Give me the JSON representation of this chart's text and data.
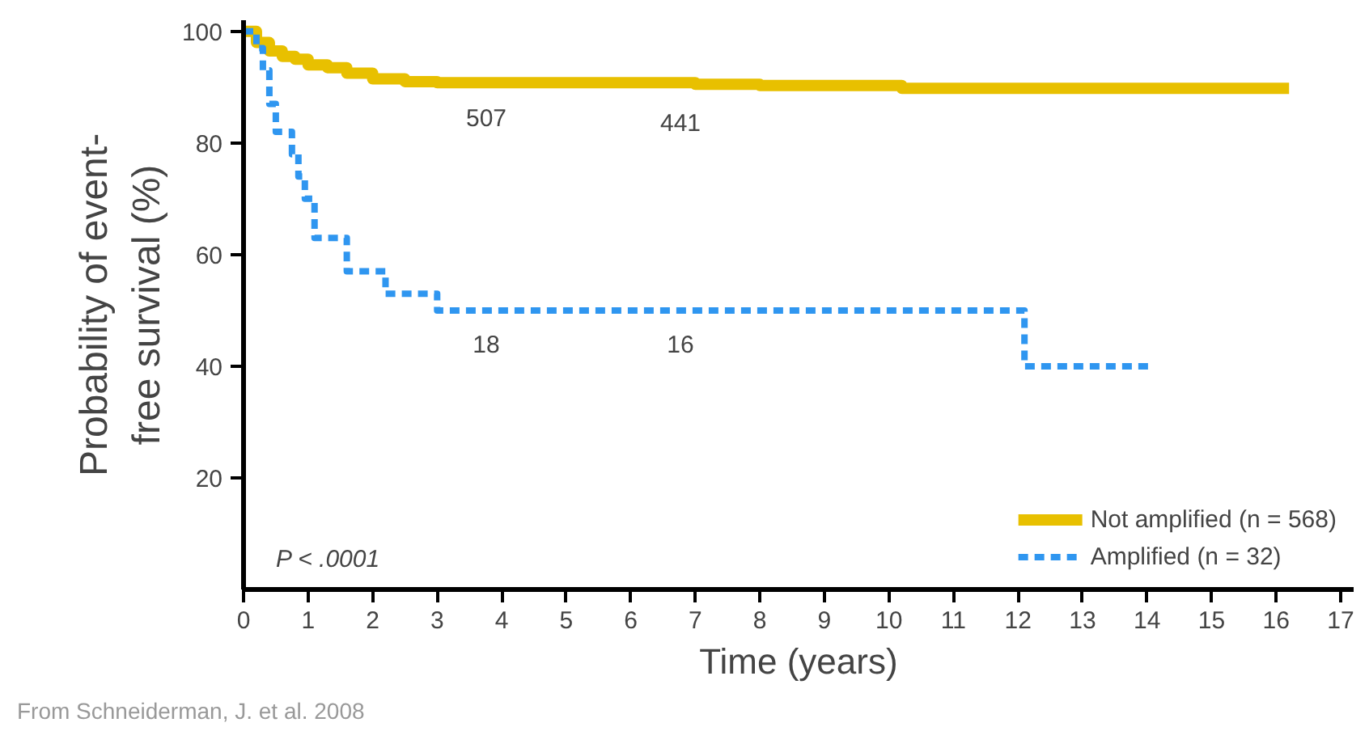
{
  "chart_data": {
    "type": "step",
    "xlabel": "Time (years)",
    "ylabel": "Probability of event-\nfree survival (%)",
    "xlim": [
      0,
      17.2
    ],
    "xticks": [
      0,
      1,
      2,
      3,
      4,
      5,
      6,
      7,
      8,
      9,
      10,
      11,
      12,
      13,
      14,
      15,
      16,
      17
    ],
    "ylim": [
      0,
      102
    ],
    "yticks": [
      20,
      40,
      60,
      80,
      100
    ],
    "grid": false,
    "legend": "bottom right",
    "series": [
      {
        "name": "Not amplified (n = 568)",
        "color": "#e8c000",
        "line_style": "solid",
        "x": [
          0,
          0.2,
          0.4,
          0.6,
          0.8,
          1.0,
          1.3,
          1.6,
          2.0,
          2.5,
          3.0,
          7.0,
          8.0,
          10.2,
          16.2
        ],
        "values": [
          100,
          98,
          96.5,
          95.5,
          95,
          94,
          93.5,
          92.5,
          91.5,
          91,
          90.8,
          90.5,
          90.3,
          89.8,
          89.8
        ]
      },
      {
        "name": "Amplified (n = 32)",
        "color": "#2f96f0",
        "line_style": "dotted",
        "x": [
          0,
          0.2,
          0.3,
          0.4,
          0.5,
          0.75,
          0.85,
          0.95,
          1.1,
          1.6,
          2.2,
          3.0,
          12.1,
          14.1
        ],
        "values": [
          100,
          97,
          93,
          87,
          82,
          78,
          74,
          70,
          63,
          57,
          53,
          50,
          40,
          40
        ]
      }
    ],
    "annotations": [
      "P < .0001",
      "From Schneiderman, J. et al. 2008",
      "507",
      "441",
      "18",
      "16"
    ]
  }
}
